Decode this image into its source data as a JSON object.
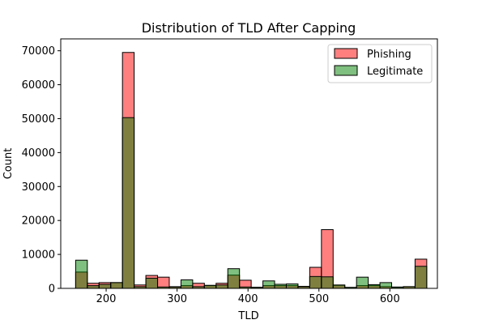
{
  "chart_data": {
    "type": "bar",
    "title": "Distribution of TLD After Capping",
    "xlabel": "TLD",
    "ylabel": "Count",
    "xlim": [
      136,
      667
    ],
    "ylim": [
      0,
      73500
    ],
    "xticks": [
      200,
      300,
      400,
      500,
      600
    ],
    "yticks": [
      0,
      10000,
      20000,
      30000,
      40000,
      50000,
      60000,
      70000
    ],
    "grid": false,
    "legend_position": "top-right",
    "bin_edges": [
      157,
      173.5,
      190,
      206.5,
      223,
      239.5,
      256,
      272.5,
      289,
      305.5,
      322,
      338.5,
      355,
      371.5,
      388,
      404.5,
      421,
      437.5,
      454,
      470.5,
      487,
      503.5,
      520,
      536.5,
      553,
      569.5,
      586,
      602.5,
      619,
      635.5,
      652
    ],
    "series": [
      {
        "name": "Phishing",
        "color": "#ff0000",
        "alpha": 0.5,
        "values": [
          4800,
          1500,
          1700,
          1700,
          69500,
          1000,
          3800,
          3300,
          500,
          800,
          1500,
          800,
          1500,
          3900,
          2400,
          300,
          800,
          800,
          800,
          600,
          6200,
          17300,
          900,
          200,
          800,
          800,
          500,
          300,
          500,
          8600
        ]
      },
      {
        "name": "Legitimate",
        "color": "#008000",
        "alpha": 0.5,
        "values": [
          8300,
          800,
          1200,
          1700,
          50300,
          500,
          3000,
          400,
          400,
          2500,
          500,
          900,
          1000,
          5800,
          400,
          300,
          2200,
          1200,
          1300,
          500,
          3500,
          3400,
          1000,
          300,
          3300,
          1100,
          1700,
          400,
          500,
          6500
        ]
      }
    ]
  }
}
